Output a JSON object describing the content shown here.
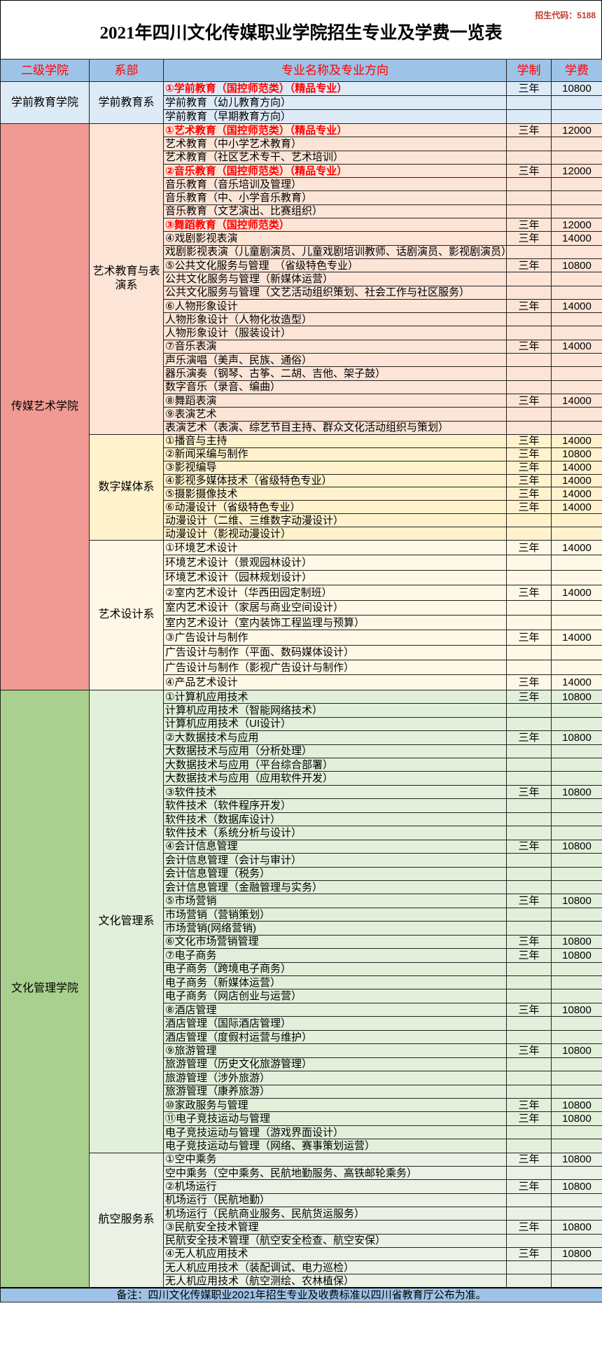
{
  "title": "2021年四川文化传媒职业学院招生专业及学费一览表",
  "enroll_code": "招生代码：5188",
  "headers": {
    "college": "二级学院",
    "dept": "系部",
    "major": "专业名称及专业方向",
    "years": "学制",
    "fee": "学费"
  },
  "colors": {
    "header_bg": "#9dc3e6",
    "header_text": "#ff0000",
    "highlight_text": "#ff0000"
  },
  "colleges": [
    {
      "name": "学前教育学院",
      "bg": "#ddebf7",
      "depts": [
        {
          "name": "学前教育系",
          "bg": "#ddebf7",
          "row_h": 20,
          "majors": [
            {
              "name": "①学前教育（国控师范类）（精品专业）",
              "years": "三年",
              "fee": "10800",
              "highlight": true
            },
            {
              "name": "学前教育（幼儿教育方向）"
            },
            {
              "name": "学前教育（早期教育方向）"
            }
          ]
        }
      ]
    },
    {
      "name": "传媒艺术学院",
      "bg": "#f19a93",
      "depts": [
        {
          "name": "艺术教育与表演系",
          "bg": "#fce4d6",
          "row_h": 19.3,
          "majors": [
            {
              "name": "①艺术教育（国控师范类）（精品专业）",
              "years": "三年",
              "fee": "12000",
              "highlight": true
            },
            {
              "name": "艺术教育（中小学艺术教育）"
            },
            {
              "name": "艺术教育（社区艺术专干、艺术培训）"
            },
            {
              "name": "②音乐教育（国控师范类）（精品专业）",
              "years": "三年",
              "fee": "12000",
              "highlight": true
            },
            {
              "name": "音乐教育（音乐培训及管理）"
            },
            {
              "name": "音乐教育（中、小学音乐教育）"
            },
            {
              "name": "音乐教育（文艺演出、比赛组织）"
            },
            {
              "name": "③舞蹈教育（国控师范类）",
              "years": "三年",
              "fee": "12000",
              "highlight": true
            },
            {
              "name": "④戏剧影视表演",
              "years": "三年",
              "fee": "14000"
            },
            {
              "name": "戏剧影视表演（儿童剧演员、儿童戏剧培训教师、话剧演员、影视剧演员）"
            },
            {
              "name": "⑤公共文化服务与管理　（省级特色专业）",
              "years": "三年",
              "fee": "10800"
            },
            {
              "name": "公共文化服务与管理（新媒体运营）"
            },
            {
              "name": "公共文化服务与管理（文艺活动组织策划、社会工作与社区服务）"
            },
            {
              "name": "⑥人物形象设计",
              "years": "三年",
              "fee": "14000"
            },
            {
              "name": "人物形象设计（人物化妆造型）"
            },
            {
              "name": "人物形象设计（服装设计）"
            },
            {
              "name": "⑦音乐表演",
              "years": "三年",
              "fee": "14000"
            },
            {
              "name": "声乐演唱（美声、民族、通俗）"
            },
            {
              "name": "器乐演奏（钢琴、古筝、二胡、吉他、架子鼓）"
            },
            {
              "name": "数字音乐（录音、编曲）"
            },
            {
              "name": "⑧舞蹈表演",
              "years": "三年",
              "fee": "14000"
            },
            {
              "name": "⑨表演艺术"
            },
            {
              "name": "表演艺术（表演、综艺节目主持、群众文化活动组织与策划）"
            }
          ]
        },
        {
          "name": "数字媒体系",
          "bg": "#fff2cc",
          "row_h": 18.9,
          "majors": [
            {
              "name": "①播音与主持",
              "years": "三年",
              "fee": "14000"
            },
            {
              "name": "②新闻采编与制作",
              "years": "三年",
              "fee": "10800"
            },
            {
              "name": "③影视编导",
              "years": "三年",
              "fee": "14000"
            },
            {
              "name": "④影视多媒体技术（省级特色专业）",
              "years": "三年",
              "fee": "14000"
            },
            {
              "name": "⑤摄影摄像技术",
              "years": "三年",
              "fee": "14000"
            },
            {
              "name": "⑥动漫设计（省级特色专业）",
              "years": "三年",
              "fee": "14000"
            },
            {
              "name": "动漫设计（二维、三维数字动漫设计）"
            },
            {
              "name": "动漫设计（影视动漫设计）"
            }
          ]
        },
        {
          "name": "艺术设计系",
          "bg": "#fff8e6",
          "row_h": 21.4,
          "majors": [
            {
              "name": "①环境艺术设计",
              "years": "三年",
              "fee": "14000"
            },
            {
              "name": "环境艺术设计（景观园林设计）"
            },
            {
              "name": "环境艺术设计（园林规划设计）"
            },
            {
              "name": "②室内艺术设计（华西田园定制班）",
              "years": "三年",
              "fee": "14000"
            },
            {
              "name": "室内艺术设计（家居与商业空间设计）"
            },
            {
              "name": "室内艺术设计（室内装饰工程监理与预算）"
            },
            {
              "name": "③广告设计与制作",
              "years": "三年",
              "fee": "14000"
            },
            {
              "name": "广告设计与制作（平面、数码媒体设计）"
            },
            {
              "name": "广告设计与制作（影视广告设计与制作）"
            },
            {
              "name": "④产品艺术设计",
              "years": "三年",
              "fee": "14000"
            }
          ]
        }
      ]
    },
    {
      "name": "文化管理学院",
      "bg": "#a9d08e",
      "depts": [
        {
          "name": "文化管理系",
          "bg": "#e2efda",
          "row_h": 19.45,
          "majors": [
            {
              "name": "①计算机应用技术",
              "years": "三年",
              "fee": "10800"
            },
            {
              "name": "计算机应用技术（智能网络技术）"
            },
            {
              "name": "计算机应用技术（UI设计）"
            },
            {
              "name": "②大数据技术与应用",
              "years": "三年",
              "fee": "10800"
            },
            {
              "name": "大数据技术与应用（分析处理）"
            },
            {
              "name": "大数据技术与应用（平台综合部署）"
            },
            {
              "name": "大数据技术与应用（应用软件开发）"
            },
            {
              "name": "③软件技术",
              "years": "三年",
              "fee": "10800"
            },
            {
              "name": "软件技术（软件程序开发）"
            },
            {
              "name": "软件技术（数据库设计）"
            },
            {
              "name": "软件技术（系统分析与设计）"
            },
            {
              "name": "④会计信息管理",
              "years": "三年",
              "fee": "10800"
            },
            {
              "name": "会计信息管理（会计与审计）"
            },
            {
              "name": "会计信息管理（税务）"
            },
            {
              "name": "会计信息管理（金融管理与实务）"
            },
            {
              "name": "⑤市场营销",
              "years": "三年",
              "fee": "10800"
            },
            {
              "name": "市场营销（营销策划）"
            },
            {
              "name": "市场营销(网络营销)"
            },
            {
              "name": "⑥文化市场营销管理",
              "years": "三年",
              "fee": "10800"
            },
            {
              "name": "⑦电子商务",
              "years": "三年",
              "fee": "10800"
            },
            {
              "name": "电子商务（跨境电子商务）"
            },
            {
              "name": "电子商务（新媒体运营）"
            },
            {
              "name": "电子商务（网店创业与运营）"
            },
            {
              "name": "⑧酒店管理",
              "years": "三年",
              "fee": "10800"
            },
            {
              "name": "酒店管理（国际酒店管理）"
            },
            {
              "name": "酒店管理（度假村运营与维护）"
            },
            {
              "name": "⑨旅游管理",
              "years": "三年",
              "fee": "10800"
            },
            {
              "name": "旅游管理（历史文化旅游管理）"
            },
            {
              "name": "旅游管理（涉外旅游）"
            },
            {
              "name": "旅游管理（康养旅游）"
            },
            {
              "name": "⑩家政服务与管理",
              "years": "三年",
              "fee": "10800"
            },
            {
              "name": "⑪电子竞技运动与管理",
              "years": "三年",
              "fee": "10800"
            },
            {
              "name": "电子竞技运动与管理（游戏界面设计）"
            },
            {
              "name": "电子竞技运动与管理（网络、赛事策划运营）"
            }
          ]
        },
        {
          "name": "航空服务系",
          "bg": "#ebf1e5",
          "row_h": 19.3,
          "majors": [
            {
              "name": "①空中乘务",
              "years": "三年",
              "fee": "10800"
            },
            {
              "name": "空中乘务（空中乘务、民航地勤服务、高铁邮轮乘务）"
            },
            {
              "name": "②机场运行",
              "years": "三年",
              "fee": "10800"
            },
            {
              "name": "机场运行（民航地勤）"
            },
            {
              "name": "机场运行（民航商业服务、民航货运服务）"
            },
            {
              "name": "③民航安全技术管理",
              "years": "三年",
              "fee": "10800"
            },
            {
              "name": "民航安全技术管理（航空安全检查、航空安保）"
            },
            {
              "name": "④无人机应用技术",
              "years": "三年",
              "fee": "10800"
            },
            {
              "name": "无人机应用技术（装配调试、电力巡检）"
            },
            {
              "name": "无人机应用技术（航空测绘、农林植保）"
            }
          ]
        }
      ]
    }
  ],
  "footer": "备注：四川文化传媒职业2021年招生专业及收费标准以四川省教育厅公布为准。"
}
